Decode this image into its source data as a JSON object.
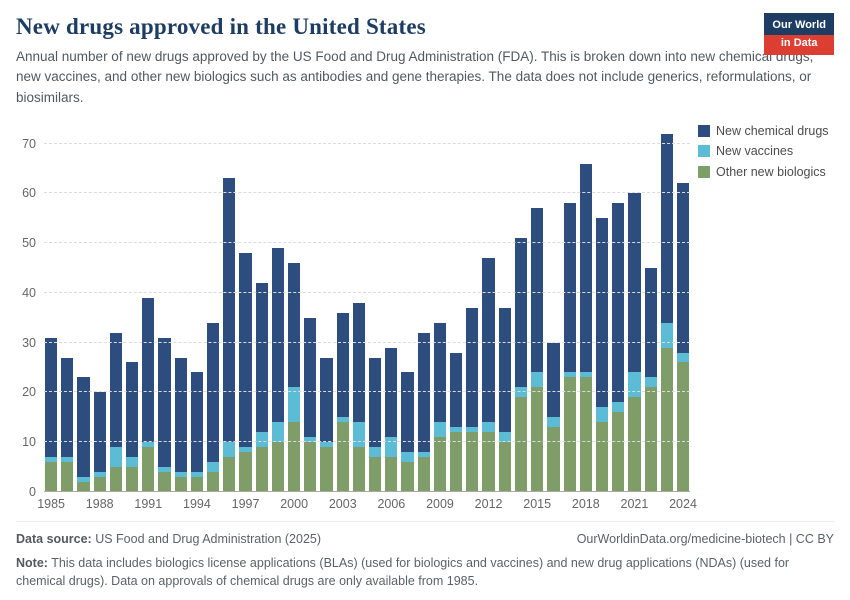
{
  "header": {
    "title": "New drugs approved in the United States",
    "subtitle": "Annual number of new drugs approved by the US Food and Drug Administration (FDA). This is broken down into new chemical drugs, new vaccines, and other new biologics such as antibodies and gene therapies. The data does not include generics, reformulations, or biosimilars.",
    "logo": {
      "line1": "Our World",
      "line2": "in Data"
    }
  },
  "chart_data": {
    "type": "bar",
    "stacked": true,
    "title": "New drugs approved in the United States",
    "xlabel": "",
    "ylabel": "",
    "ylim": [
      0,
      74
    ],
    "yticks": [
      0,
      10,
      20,
      30,
      40,
      50,
      60,
      70
    ],
    "grid": "dashed-horizontal",
    "legend_position": "top-right",
    "x": [
      1985,
      1986,
      1987,
      1988,
      1989,
      1990,
      1991,
      1992,
      1993,
      1994,
      1995,
      1996,
      1997,
      1998,
      1999,
      2000,
      2001,
      2002,
      2003,
      2004,
      2005,
      2006,
      2007,
      2008,
      2009,
      2010,
      2011,
      2012,
      2013,
      2014,
      2015,
      2016,
      2017,
      2018,
      2019,
      2020,
      2021,
      2022,
      2023,
      2024
    ],
    "x_tick_labels": [
      1985,
      1988,
      1991,
      1994,
      1997,
      2000,
      2003,
      2006,
      2009,
      2012,
      2015,
      2018,
      2021,
      2024
    ],
    "stack_order_bottom_to_top": [
      "Other new biologics",
      "New vaccines",
      "New chemical drugs"
    ],
    "series": [
      {
        "name": "New chemical drugs",
        "color": "#2c4d7e",
        "values": [
          24,
          20,
          20,
          16,
          23,
          19,
          29,
          26,
          23,
          20,
          28,
          53,
          39,
          30,
          35,
          25,
          24,
          17,
          21,
          24,
          18,
          18,
          16,
          24,
          20,
          15,
          24,
          33,
          25,
          30,
          33,
          15,
          34,
          42,
          38,
          40,
          36,
          22,
          38,
          34
        ]
      },
      {
        "name": "New vaccines",
        "color": "#5cbcd6",
        "values": [
          1,
          1,
          1,
          1,
          4,
          2,
          1,
          1,
          1,
          1,
          2,
          3,
          1,
          3,
          4,
          7,
          1,
          1,
          1,
          5,
          2,
          4,
          2,
          1,
          3,
          1,
          1,
          2,
          2,
          2,
          3,
          2,
          1,
          1,
          3,
          2,
          5,
          2,
          5,
          2
        ]
      },
      {
        "name": "Other new biologics",
        "color": "#7e9d68",
        "values": [
          6,
          6,
          2,
          3,
          5,
          5,
          9,
          4,
          3,
          3,
          4,
          7,
          8,
          9,
          10,
          14,
          10,
          9,
          14,
          9,
          7,
          7,
          6,
          7,
          11,
          12,
          12,
          12,
          10,
          19,
          21,
          13,
          23,
          23,
          14,
          16,
          19,
          21,
          29,
          26
        ]
      }
    ],
    "totals": [
      31,
      27,
      23,
      20,
      32,
      26,
      39,
      31,
      27,
      24,
      34,
      63,
      48,
      42,
      49,
      46,
      35,
      27,
      36,
      38,
      27,
      29,
      24,
      32,
      34,
      28,
      37,
      47,
      37,
      51,
      57,
      30,
      58,
      66,
      55,
      58,
      60,
      45,
      72,
      62
    ]
  },
  "footer": {
    "source_label": "Data source:",
    "source_text": " US Food and Drug Administration (2025)",
    "link_text": "OurWorldinData.org/medicine-biotech | CC BY",
    "note_label": "Note:",
    "note_text": " This data includes biologics license applications (BLAs) (used for biologics and vaccines) and new drug applications (NDAs) (used for chemical drugs). Data on approvals of chemical drugs are only available from 1985."
  }
}
